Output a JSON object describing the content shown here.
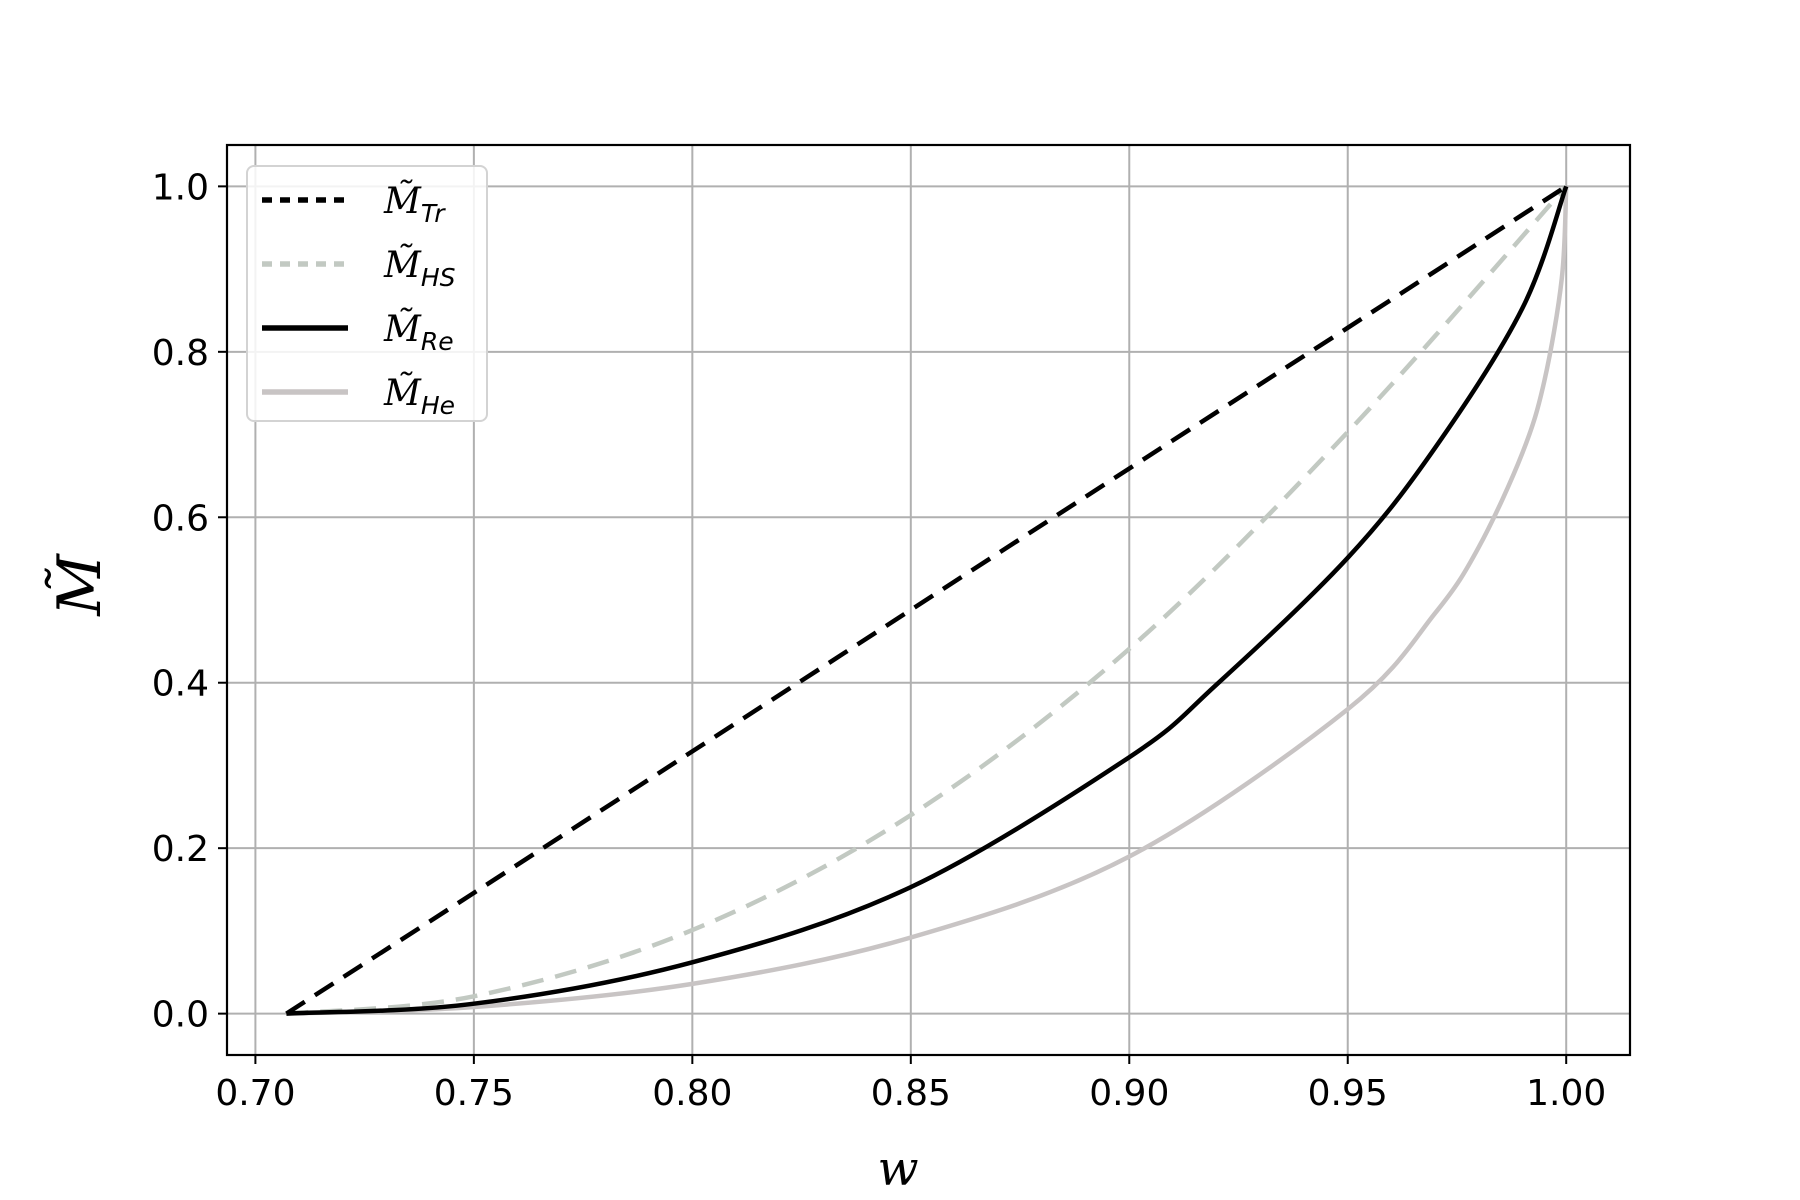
{
  "chart_data": {
    "type": "line",
    "xlabel": "w",
    "ylabel": "M̃",
    "xlim": [
      0.6935,
      1.0146
    ],
    "ylim": [
      -0.05,
      1.05
    ],
    "xticks": [
      0.7,
      0.75,
      0.8,
      0.85,
      0.9,
      0.95,
      1.0
    ],
    "xtick_labels": [
      "0.70",
      "0.75",
      "0.80",
      "0.85",
      "0.90",
      "0.95",
      "1.00"
    ],
    "yticks": [
      0.0,
      0.2,
      0.4,
      0.6,
      0.8,
      1.0
    ],
    "ytick_labels": [
      "0.0",
      "0.2",
      "0.4",
      "0.6",
      "0.8",
      "1.0"
    ],
    "grid": true,
    "legend_position": "top-left",
    "series": [
      {
        "name": "M̃Tr",
        "legend_main": "M̃",
        "legend_sub": "Tr",
        "color": "#000000",
        "style": "dashed",
        "x": [
          0.7071,
          0.75,
          0.8,
          0.85,
          0.9,
          0.95,
          1.0
        ],
        "y": [
          0.0,
          0.146,
          0.317,
          0.488,
          0.659,
          0.829,
          1.0
        ]
      },
      {
        "name": "M̃HS",
        "legend_main": "M̃",
        "legend_sub": "HS",
        "color": "#c2c9c2",
        "style": "dashed",
        "x": [
          0.7071,
          0.75,
          0.8,
          0.85,
          0.9,
          0.95,
          1.0
        ],
        "y": [
          0.0,
          0.021,
          0.101,
          0.24,
          0.441,
          0.703,
          1.0
        ]
      },
      {
        "name": "M̃Re",
        "legend_main": "M̃",
        "legend_sub": "Re",
        "color": "#000000",
        "style": "solid",
        "x": [
          0.7071,
          0.75,
          0.8,
          0.85,
          0.9,
          0.92,
          0.95,
          0.97,
          0.99,
          1.0
        ],
        "y": [
          0.0,
          0.012,
          0.062,
          0.153,
          0.31,
          0.398,
          0.551,
          0.684,
          0.853,
          1.0
        ]
      },
      {
        "name": "M̃He",
        "legend_main": "M̃",
        "legend_sub": "He",
        "color": "#c8c4c4",
        "style": "solid",
        "x": [
          0.7071,
          0.75,
          0.8,
          0.85,
          0.9,
          0.95,
          0.97,
          0.98,
          0.99,
          0.995,
          0.999,
          1.0
        ],
        "y": [
          0.0,
          0.008,
          0.036,
          0.092,
          0.19,
          0.368,
          0.484,
          0.564,
          0.678,
          0.765,
          0.889,
          1.0
        ]
      }
    ]
  }
}
